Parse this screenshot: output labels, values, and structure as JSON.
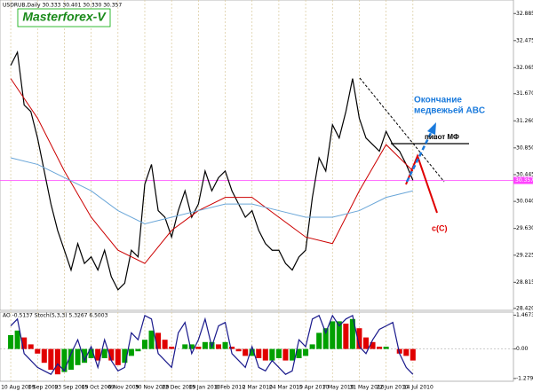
{
  "chart_data": [
    {
      "type": "line",
      "logo": "Masterforex-V",
      "title": "USDRUB,Daily  30.333 30.401 30.330 30.357",
      "annotations": [
        "Окончание",
        "медвежьей ABC",
        "пивот МФ",
        "c(C)"
      ],
      "last_price": 30.357,
      "last_color": "#ff44ff",
      "grid": true,
      "ylim": [
        28.39,
        33.09
      ],
      "yticks": [
        32.885,
        32.475,
        32.065,
        {
          "value": 31.67,
          "label": "31.670"
        },
        {
          "value": 31.26,
          "label": "31.260"
        },
        {
          "value": 30.85,
          "label": "30.850"
        },
        30.445,
        {
          "value": 30.04,
          "label": "30.040"
        },
        {
          "value": 29.63,
          "label": "29.630"
        },
        29.225,
        28.815,
        {
          "value": 28.42,
          "label": "28.420"
        }
      ],
      "series": [
        {
          "color": "#000000",
          "x": [
            0,
            4,
            8,
            12,
            16,
            20,
            24,
            28,
            32,
            36,
            40,
            44,
            48,
            52,
            56,
            60,
            64,
            68,
            72,
            76,
            80,
            84,
            88,
            92,
            96,
            100,
            104,
            108,
            112,
            116,
            120,
            124,
            128,
            132,
            136,
            140,
            144,
            148,
            152,
            156,
            160,
            164,
            168,
            172,
            176,
            180,
            184,
            188,
            192,
            196,
            200,
            204,
            208,
            212,
            216,
            220,
            224,
            228,
            232,
            236,
            240
          ],
          "values": [
            32.1,
            32.3,
            31.5,
            31.4,
            31.0,
            30.5,
            30.0,
            29.6,
            29.3,
            29.0,
            29.4,
            29.1,
            29.2,
            29.0,
            29.3,
            28.9,
            28.7,
            28.8,
            29.3,
            29.2,
            30.3,
            30.6,
            29.9,
            29.8,
            29.5,
            29.9,
            30.2,
            29.8,
            30.0,
            30.5,
            30.2,
            30.4,
            30.5,
            30.2,
            30.0,
            29.8,
            29.9,
            29.6,
            29.4,
            29.3,
            29.3,
            29.1,
            29.0,
            29.2,
            29.3,
            30.1,
            30.7,
            30.5,
            31.2,
            31.0,
            31.4,
            31.9,
            31.3,
            31.0,
            30.9,
            30.8,
            31.1,
            30.9,
            30.8,
            30.6,
            30.36
          ]
        },
        {
          "color": "#cc0000",
          "x": [
            0,
            16,
            32,
            48,
            64,
            80,
            96,
            112,
            128,
            144,
            160,
            176,
            192,
            208,
            224,
            240
          ],
          "values": [
            31.9,
            31.3,
            30.5,
            29.8,
            29.3,
            29.1,
            29.6,
            29.9,
            30.1,
            30.1,
            29.8,
            29.5,
            29.4,
            30.2,
            30.9,
            30.5
          ]
        },
        {
          "color": "#6aa6d8",
          "x": [
            0,
            16,
            32,
            48,
            64,
            80,
            96,
            112,
            128,
            144,
            160,
            176,
            192,
            208,
            224,
            240
          ],
          "values": [
            30.7,
            30.6,
            30.4,
            30.2,
            29.9,
            29.7,
            29.8,
            29.9,
            30.0,
            30.0,
            29.9,
            29.8,
            29.8,
            29.9,
            30.1,
            30.2
          ]
        }
      ]
    },
    {
      "type": "bar",
      "title": "AO -0.5137  Stoch(5,3,3) 5.3267 6.5003",
      "xlim": [
        -6.4,
        300
      ],
      "xticks": [
        {
          "value": 0,
          "label": "10 Aug 2009"
        },
        {
          "value": 16,
          "label": "1 Sep 2009"
        },
        {
          "value": 32,
          "label": "23 Sep 2009"
        },
        {
          "value": 48,
          "label": "15 Oct 2009"
        },
        {
          "value": 64,
          "label": "6 Nov 2009"
        },
        {
          "value": 80,
          "label": "30 Nov 2009"
        },
        {
          "value": 96,
          "label": "22 Dec 2009"
        },
        {
          "value": 112,
          "label": "15 Jan 2010"
        },
        {
          "value": 128,
          "label": "8 Feb 2010"
        },
        {
          "value": 144,
          "label": "2 Mar 2010"
        },
        {
          "value": 160,
          "label": "24 Mar 2010"
        },
        {
          "value": 176,
          "label": "15 Apr 2010"
        },
        {
          "value": 192,
          "label": "7 May 2010"
        },
        {
          "value": 208,
          "label": "31 May 2010"
        },
        {
          "value": 224,
          "label": "22 Jun 2010"
        },
        {
          "value": 240,
          "label": "14 Jul 2010"
        }
      ],
      "ylim": [
        -1.4,
        1.6
      ],
      "yticks": [
        1.4673,
        {
          "value": 0,
          "label": "0.00"
        },
        -1.2799
      ],
      "y2lim": [
        0,
        100
      ],
      "up_color": "#00a000",
      "down_color": "#e00000",
      "x": [
        0,
        4,
        8,
        12,
        16,
        20,
        24,
        28,
        32,
        36,
        40,
        44,
        48,
        52,
        56,
        60,
        64,
        68,
        72,
        76,
        80,
        84,
        88,
        92,
        96,
        100,
        104,
        108,
        112,
        116,
        120,
        124,
        128,
        132,
        136,
        140,
        144,
        148,
        152,
        156,
        160,
        164,
        168,
        172,
        176,
        180,
        184,
        188,
        192,
        196,
        200,
        204,
        208,
        212,
        216,
        220,
        224,
        228,
        232,
        236,
        240
      ],
      "values": [
        0.6,
        0.8,
        0.5,
        0.2,
        -0.2,
        -0.6,
        -0.9,
        -1.1,
        -1.0,
        -0.9,
        -0.7,
        -0.6,
        -0.4,
        -0.5,
        -0.4,
        -0.5,
        -0.7,
        -0.6,
        -0.3,
        -0.1,
        0.4,
        0.8,
        0.7,
        0.4,
        0.1,
        0.0,
        0.2,
        0.2,
        0.1,
        0.3,
        0.3,
        0.2,
        0.3,
        0.1,
        -0.1,
        -0.3,
        -0.3,
        -0.4,
        -0.5,
        -0.5,
        -0.4,
        -0.5,
        -0.5,
        -0.4,
        -0.3,
        0.2,
        0.7,
        0.9,
        1.2,
        1.2,
        1.1,
        1.3,
        0.9,
        0.5,
        0.3,
        0.1,
        0.1,
        0.0,
        -0.2,
        -0.3,
        -0.5
      ],
      "series": [
        {
          "color": "#1a1a8c",
          "axis": "y2",
          "values": [
            80,
            90,
            40,
            30,
            20,
            15,
            10,
            25,
            15,
            40,
            60,
            30,
            50,
            20,
            60,
            30,
            15,
            20,
            70,
            60,
            95,
            90,
            40,
            30,
            20,
            70,
            85,
            40,
            60,
            90,
            50,
            80,
            85,
            40,
            30,
            20,
            50,
            20,
            15,
            30,
            20,
            10,
            15,
            60,
            50,
            90,
            95,
            70,
            95,
            80,
            90,
            95,
            50,
            40,
            60,
            75,
            80,
            85,
            40,
            20,
            10
          ]
        }
      ]
    }
  ]
}
